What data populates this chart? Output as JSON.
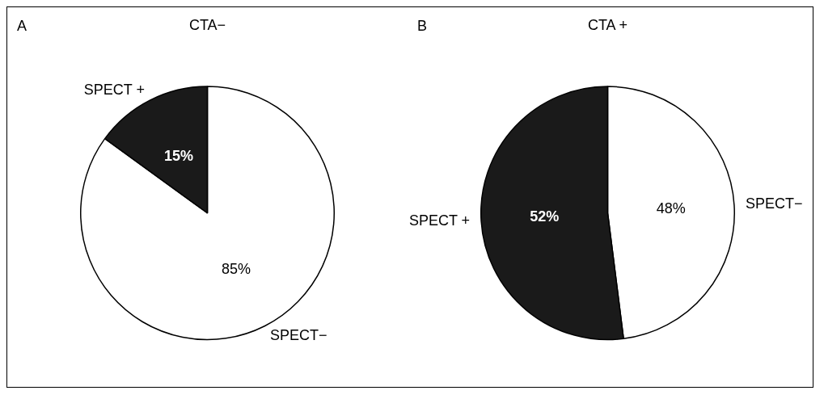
{
  "chart_data": [
    {
      "type": "pie",
      "title": "CTA−",
      "annotations": [
        "A"
      ],
      "categories": [
        "SPECT−",
        "SPECT +"
      ],
      "values": [
        85,
        15
      ],
      "colors": [
        "#ffffff",
        "#1a1a1a"
      ],
      "value_labels": [
        "85%",
        "15%"
      ]
    },
    {
      "type": "pie",
      "title": "CTA +",
      "annotations": [
        "B"
      ],
      "categories": [
        "SPECT−",
        "SPECT +"
      ],
      "values": [
        48,
        52
      ],
      "colors": [
        "#ffffff",
        "#1a1a1a"
      ],
      "value_labels": [
        "48%",
        "52%"
      ]
    }
  ]
}
